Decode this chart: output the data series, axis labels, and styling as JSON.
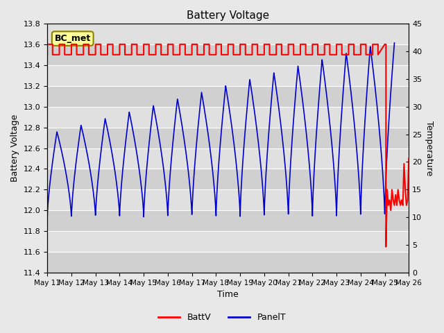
{
  "title": "Battery Voltage",
  "xlabel": "Time",
  "ylabel_left": "Battery Voltage",
  "ylabel_right": "Temperature",
  "ylim_left": [
    11.4,
    13.8
  ],
  "ylim_right": [
    0,
    45
  ],
  "yticks_left": [
    11.4,
    11.6,
    11.8,
    12.0,
    12.2,
    12.4,
    12.6,
    12.8,
    13.0,
    13.2,
    13.4,
    13.6,
    13.8
  ],
  "yticks_right": [
    0,
    5,
    10,
    15,
    20,
    25,
    30,
    35,
    40,
    45
  ],
  "bg_color": "#e8e8e8",
  "plot_bg_color": "#d8d8d8",
  "grid_color": "#ffffff",
  "annotation_text": "BC_met",
  "annotation_bg": "#ffff99",
  "annotation_border": "#8B8000",
  "batt_color": "#ff0000",
  "panel_color": "#0000cc",
  "legend_batt": "BattV",
  "legend_panel": "PanelT",
  "x_tick_labels": [
    "May 11",
    "May 12",
    "May 13",
    "May 14",
    "May 15",
    "May 16",
    "May 17",
    "May 18",
    "May 19",
    "May 20",
    "May 21",
    "May 22",
    "May 23",
    "May 24",
    "May 25",
    "May 26"
  ],
  "figsize": [
    6.4,
    4.8
  ],
  "dpi": 100
}
